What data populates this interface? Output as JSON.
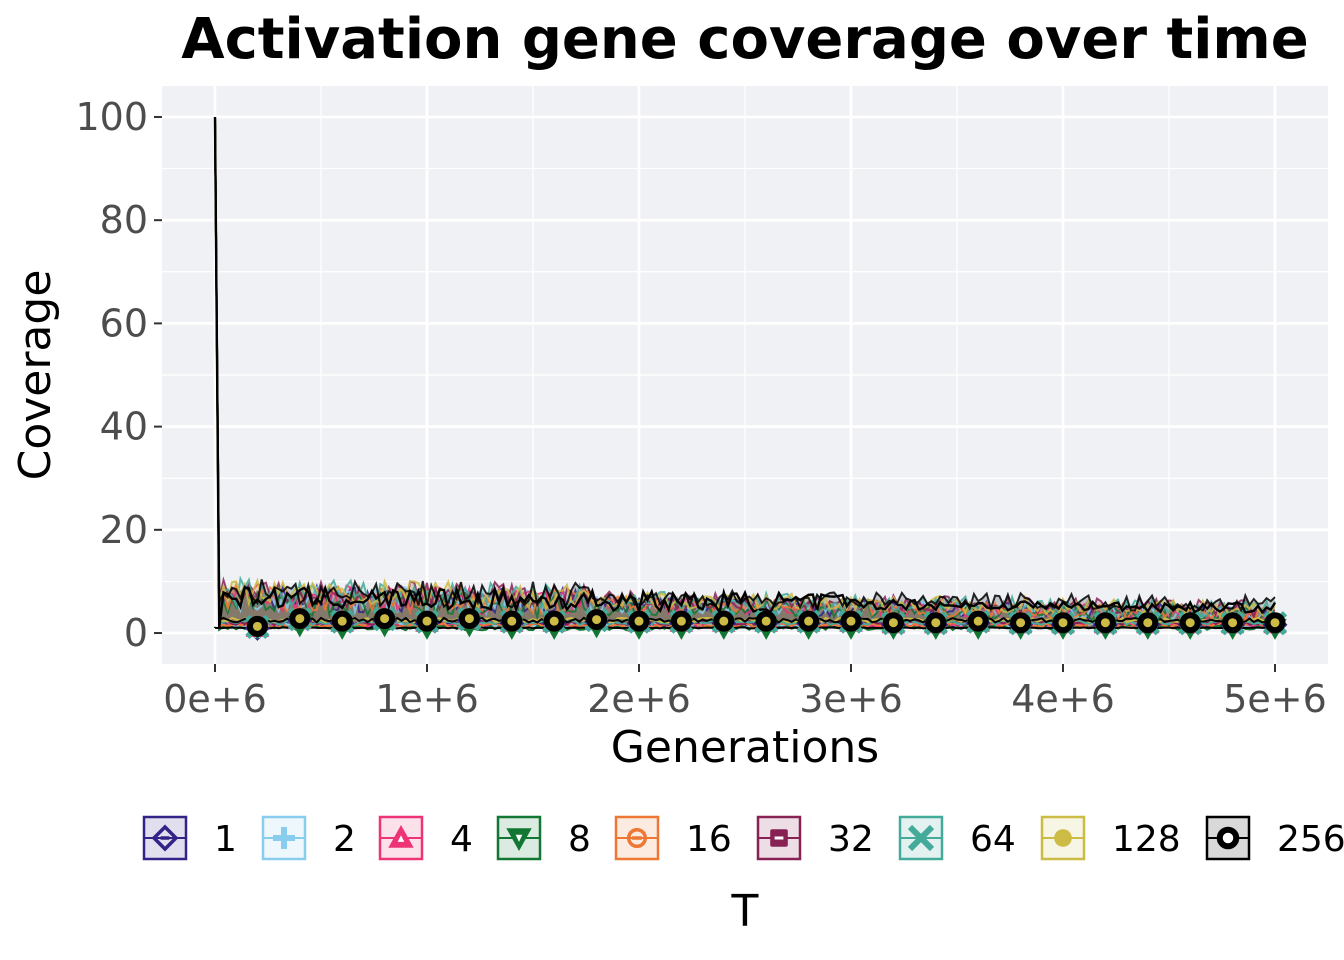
{
  "chart_data": {
    "type": "line",
    "title": "Activation gene coverage over time",
    "xlabel": "Generations",
    "ylabel": "Coverage",
    "xlim": [
      -250000,
      5250000
    ],
    "ylim": [
      -6,
      106
    ],
    "x_ticks": [
      0,
      1000000,
      2000000,
      3000000,
      4000000,
      5000000
    ],
    "x_tick_labels": [
      "0e+6",
      "1e+6",
      "2e+6",
      "3e+6",
      "4e+6",
      "5e+6"
    ],
    "y_ticks": [
      0,
      20,
      40,
      60,
      80,
      100
    ],
    "y_tick_labels": [
      "0",
      "20",
      "40",
      "60",
      "80",
      "100"
    ],
    "grid": true,
    "legend": {
      "title": "T",
      "position": "bottom"
    },
    "series": [
      {
        "name": "1",
        "color": "#332288",
        "marker": "diamond",
        "start": 100,
        "median": 1.5,
        "upper_early": 6,
        "upper_late": 3
      },
      {
        "name": "2",
        "color": "#88CCEE",
        "marker": "plus",
        "start": 100,
        "median": 1.5,
        "upper_early": 6,
        "upper_late": 3
      },
      {
        "name": "4",
        "color": "#EE3377",
        "marker": "triangle-up",
        "start": 100,
        "median": 1.5,
        "upper_early": 6,
        "upper_late": 3
      },
      {
        "name": "8",
        "color": "#117733",
        "marker": "triangle-down",
        "start": 100,
        "median": 1,
        "upper_early": 5,
        "upper_late": 3
      },
      {
        "name": "16",
        "color": "#EE7733",
        "marker": "circle-minus",
        "start": 100,
        "median": 1.5,
        "upper_early": 6,
        "upper_late": 3
      },
      {
        "name": "32",
        "color": "#882255",
        "marker": "square-minus",
        "start": 100,
        "median": 2,
        "upper_early": 7,
        "upper_late": 4
      },
      {
        "name": "64",
        "color": "#44AA99",
        "marker": "x",
        "start": 100,
        "median": 2,
        "upper_early": 7,
        "upper_late": 4
      },
      {
        "name": "128",
        "color": "#CCBB44",
        "marker": "dot",
        "start": 100,
        "median": 2.5,
        "upper_early": 7,
        "upper_late": 4
      },
      {
        "name": "256",
        "color": "#000000",
        "marker": "ring",
        "start": 100,
        "median": 2.5,
        "upper_early": 7,
        "upper_late": 5
      }
    ],
    "marker_x": [
      200000,
      400000,
      600000,
      800000,
      1000000,
      1200000,
      1400000,
      1600000,
      1800000,
      2000000,
      2200000,
      2400000,
      2600000,
      2800000,
      3000000,
      3200000,
      3400000,
      3600000,
      3800000,
      4000000,
      4200000,
      4400000,
      4600000,
      4800000,
      5000000
    ],
    "marker_y": [
      1.5,
      3,
      2.5,
      3,
      2.5,
      3,
      2.5,
      2.5,
      2.8,
      2.5,
      2.5,
      2.5,
      2.5,
      2.5,
      2.5,
      2.2,
      2.2,
      2.5,
      2.2,
      2.2,
      2.2,
      2.2,
      2.2,
      2.2,
      2.2
    ]
  }
}
